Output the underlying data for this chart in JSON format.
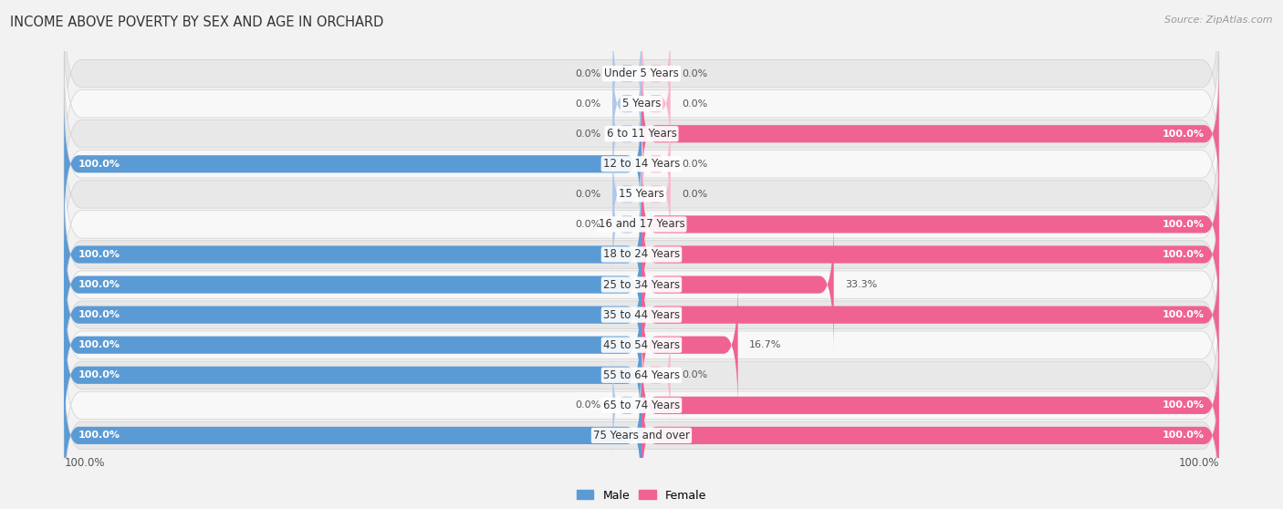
{
  "title": "INCOME ABOVE POVERTY BY SEX AND AGE IN ORCHARD",
  "source": "Source: ZipAtlas.com",
  "categories": [
    "Under 5 Years",
    "5 Years",
    "6 to 11 Years",
    "12 to 14 Years",
    "15 Years",
    "16 and 17 Years",
    "18 to 24 Years",
    "25 to 34 Years",
    "35 to 44 Years",
    "45 to 54 Years",
    "55 to 64 Years",
    "65 to 74 Years",
    "75 Years and over"
  ],
  "male": [
    0.0,
    0.0,
    0.0,
    100.0,
    0.0,
    0.0,
    100.0,
    100.0,
    100.0,
    100.0,
    100.0,
    0.0,
    100.0
  ],
  "female": [
    0.0,
    0.0,
    100.0,
    0.0,
    0.0,
    100.0,
    100.0,
    33.3,
    100.0,
    16.7,
    0.0,
    100.0,
    100.0
  ],
  "male_color": "#5b9bd5",
  "female_color": "#f06292",
  "male_color_light": "#adc8e8",
  "female_color_light": "#f8b8cc",
  "bg_color": "#f2f2f2",
  "row_color_odd": "#e8e8e8",
  "row_color_even": "#f8f8f8",
  "title_fontsize": 10.5,
  "label_fontsize": 8.5,
  "value_fontsize": 8.0,
  "legend_fontsize": 9,
  "axis_label_fontsize": 8.5
}
